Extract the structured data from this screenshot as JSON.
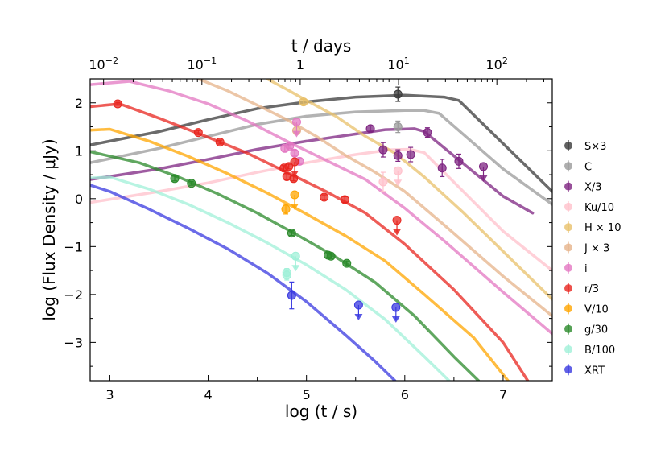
{
  "chart_data": {
    "type": "line",
    "xlabel": "log (t / s)",
    "ylabel": "log (Flux Density / μJy)",
    "top_xlabel": "t / days",
    "xlim": [
      2.8,
      7.5
    ],
    "ylim": [
      -3.8,
      2.5
    ],
    "x_ticks": [
      "3",
      "4",
      "5",
      "6",
      "7"
    ],
    "y_ticks": [
      "−3",
      "−2",
      "−1",
      "0",
      "1",
      "2"
    ],
    "top_ticks": [
      {
        "label": "10",
        "exp": "−2",
        "logt": 2.9365
      },
      {
        "label": "10",
        "exp": "−1",
        "logt": 3.9365
      },
      {
        "label": "10",
        "exp": "0",
        "logt": 4.9365,
        "plain": "1"
      },
      {
        "label": "10",
        "exp": "1",
        "logt": 5.9365
      },
      {
        "label": "10",
        "exp": "2",
        "logt": 6.9365
      }
    ],
    "series": [
      {
        "name": "S×3",
        "color": "#3a3a3a",
        "curve": [
          [
            2.8,
            1.12
          ],
          [
            3.5,
            1.4
          ],
          [
            4,
            1.65
          ],
          [
            4.5,
            1.88
          ],
          [
            5,
            2.02
          ],
          [
            5.5,
            2.12
          ],
          [
            6,
            2.16
          ],
          [
            6.4,
            2.12
          ],
          [
            6.55,
            2.05
          ],
          [
            7,
            1.15
          ],
          [
            7.5,
            0.15
          ]
        ],
        "points": [
          {
            "x": 5.93,
            "y": 2.18,
            "e": 0.15
          }
        ]
      },
      {
        "name": "C",
        "color": "#9a9a9a",
        "curve": [
          [
            2.8,
            0.75
          ],
          [
            3.5,
            1.05
          ],
          [
            4,
            1.3
          ],
          [
            4.5,
            1.55
          ],
          [
            5,
            1.72
          ],
          [
            5.5,
            1.81
          ],
          [
            6,
            1.84
          ],
          [
            6.2,
            1.84
          ],
          [
            6.35,
            1.78
          ],
          [
            7,
            0.62
          ],
          [
            7.5,
            -0.12
          ]
        ],
        "points": [
          {
            "x": 5.93,
            "y": 1.5,
            "e": 0.12
          }
        ]
      },
      {
        "name": "X/3",
        "color": "#7e2481",
        "curve": [
          [
            2.8,
            0.4
          ],
          [
            3.5,
            0.62
          ],
          [
            4,
            0.82
          ],
          [
            4.5,
            1.03
          ],
          [
            5,
            1.2
          ],
          [
            5.5,
            1.35
          ],
          [
            5.8,
            1.44
          ],
          [
            6.1,
            1.46
          ],
          [
            6.2,
            1.4
          ],
          [
            7,
            0.05
          ],
          [
            7.3,
            -0.3
          ]
        ],
        "points": [
          {
            "x": 5.65,
            "y": 1.46,
            "e": 0.06
          },
          {
            "x": 5.78,
            "y": 1.02,
            "e": 0.15
          },
          {
            "x": 5.93,
            "y": 0.9,
            "e": 0.12
          },
          {
            "x": 6.06,
            "y": 0.92,
            "e": 0.15
          },
          {
            "x": 6.23,
            "y": 1.38,
            "e": 0.1
          },
          {
            "x": 6.38,
            "y": 0.64,
            "e": 0.18
          },
          {
            "x": 6.55,
            "y": 0.78,
            "e": 0.15
          }
        ],
        "limits": [
          {
            "x": 6.8,
            "y": 0.67
          }
        ]
      },
      {
        "name": "Ku/10",
        "color": "#ffc0cb",
        "curve": [
          [
            2.8,
            -0.08
          ],
          [
            3.5,
            0.15
          ],
          [
            4,
            0.33
          ],
          [
            4.5,
            0.55
          ],
          [
            5,
            0.75
          ],
          [
            5.5,
            0.92
          ],
          [
            5.85,
            1.02
          ],
          [
            6.05,
            1.03
          ],
          [
            6.2,
            0.96
          ],
          [
            7,
            -0.68
          ],
          [
            7.5,
            -1.5
          ]
        ],
        "points": [
          {
            "x": 5.78,
            "y": 0.35,
            "e": 0.2
          }
        ],
        "limits": [
          {
            "x": 5.93,
            "y": 0.58
          }
        ]
      },
      {
        "name": "H × 10",
        "color": "#e8c06a",
        "curve": [
          [
            4.6,
            2.5
          ],
          [
            4.8,
            2.28
          ],
          [
            5,
            2.05
          ],
          [
            5.3,
            1.72
          ],
          [
            5.6,
            1.3
          ],
          [
            5.9,
            0.95
          ],
          [
            6.2,
            0.45
          ],
          [
            6.6,
            -0.3
          ],
          [
            7,
            -1.1
          ],
          [
            7.5,
            -2.1
          ]
        ],
        "points": [
          {
            "x": 4.97,
            "y": 2.02,
            "e": 0.05
          }
        ]
      },
      {
        "name": "J × 3",
        "color": "#e6b38a",
        "curve": [
          [
            3.9,
            2.5
          ],
          [
            4.2,
            2.25
          ],
          [
            4.5,
            1.95
          ],
          [
            4.8,
            1.65
          ],
          [
            5.1,
            1.3
          ],
          [
            5.4,
            0.9
          ],
          [
            5.7,
            0.55
          ],
          [
            6,
            0.15
          ],
          [
            6.4,
            -0.55
          ],
          [
            7,
            -1.62
          ],
          [
            7.5,
            -2.45
          ]
        ],
        "points": [
          {
            "x": 4.9,
            "y": 1.42,
            "e": 0.08
          }
        ]
      },
      {
        "name": "i",
        "color": "#e377c2",
        "curve": [
          [
            2.8,
            2.38
          ],
          [
            3.2,
            2.45
          ],
          [
            3.6,
            2.25
          ],
          [
            4,
            1.98
          ],
          [
            4.4,
            1.62
          ],
          [
            4.8,
            1.2
          ],
          [
            5.2,
            0.8
          ],
          [
            5.6,
            0.4
          ],
          [
            6,
            -0.2
          ],
          [
            6.4,
            -0.88
          ],
          [
            7,
            -1.95
          ],
          [
            7.5,
            -2.82
          ]
        ],
        "points": [
          {
            "x": 4.78,
            "y": 1.05,
            "e": 0.06
          },
          {
            "x": 4.83,
            "y": 1.1,
            "e": 0.05
          },
          {
            "x": 4.88,
            "y": 0.95,
            "e": 0.06
          },
          {
            "x": 4.93,
            "y": 0.78,
            "e": 0.06
          }
        ],
        "limits": [
          {
            "x": 4.9,
            "y": 1.6
          }
        ]
      },
      {
        "name": "r/3",
        "color": "#e8261f",
        "curve": [
          [
            2.8,
            1.92
          ],
          [
            3.1,
            1.98
          ],
          [
            3.5,
            1.68
          ],
          [
            4,
            1.28
          ],
          [
            4.4,
            0.95
          ],
          [
            4.8,
            0.55
          ],
          [
            5.2,
            0.15
          ],
          [
            5.6,
            -0.3
          ],
          [
            6,
            -0.95
          ],
          [
            6.5,
            -1.9
          ],
          [
            7,
            -3.0
          ],
          [
            7.25,
            -3.8
          ]
        ],
        "points": [
          {
            "x": 3.08,
            "y": 1.98,
            "e": 0.03
          },
          {
            "x": 3.9,
            "y": 1.38,
            "e": 0.04
          },
          {
            "x": 4.12,
            "y": 1.18,
            "e": 0.04
          },
          {
            "x": 4.77,
            "y": 0.64,
            "e": 0.05
          },
          {
            "x": 4.82,
            "y": 0.67,
            "e": 0.05
          },
          {
            "x": 4.8,
            "y": 0.46,
            "e": 0.06
          },
          {
            "x": 4.87,
            "y": 0.42,
            "e": 0.05
          },
          {
            "x": 5.18,
            "y": 0.03,
            "e": 0.05
          },
          {
            "x": 5.39,
            "y": -0.02,
            "e": 0.06
          }
        ],
        "limits": [
          {
            "x": 4.88,
            "y": 0.77
          },
          {
            "x": 5.92,
            "y": -0.45
          }
        ]
      },
      {
        "name": "V/10",
        "color": "#ffa500",
        "curve": [
          [
            2.8,
            1.43
          ],
          [
            3,
            1.45
          ],
          [
            3.4,
            1.2
          ],
          [
            3.8,
            0.88
          ],
          [
            4.2,
            0.52
          ],
          [
            4.6,
            0.12
          ],
          [
            5,
            -0.32
          ],
          [
            5.4,
            -0.78
          ],
          [
            5.8,
            -1.3
          ],
          [
            6.2,
            -2.0
          ],
          [
            6.7,
            -2.9
          ],
          [
            7.05,
            -3.8
          ]
        ],
        "points": [
          {
            "x": 4.79,
            "y": -0.22,
            "e": 0.1
          }
        ],
        "limits": [
          {
            "x": 4.88,
            "y": 0.08
          }
        ]
      },
      {
        "name": "g/30",
        "color": "#2b8a2b",
        "curve": [
          [
            2.8,
            0.98
          ],
          [
            3.3,
            0.75
          ],
          [
            3.7,
            0.45
          ],
          [
            4.1,
            0.1
          ],
          [
            4.5,
            -0.3
          ],
          [
            4.9,
            -0.75
          ],
          [
            5.3,
            -1.22
          ],
          [
            5.7,
            -1.75
          ],
          [
            6.1,
            -2.45
          ],
          [
            6.5,
            -3.3
          ],
          [
            6.75,
            -3.8
          ]
        ],
        "points": [
          {
            "x": 3.66,
            "y": 0.42,
            "e": 0.05
          },
          {
            "x": 3.83,
            "y": 0.32,
            "e": 0.04
          },
          {
            "x": 4.85,
            "y": -0.72,
            "e": 0.05
          },
          {
            "x": 5.22,
            "y": -1.18,
            "e": 0.05
          },
          {
            "x": 5.25,
            "y": -1.2,
            "e": 0.05
          },
          {
            "x": 5.41,
            "y": -1.35,
            "e": 0.05
          }
        ]
      },
      {
        "name": "B/100",
        "color": "#a0f0d8",
        "curve": [
          [
            2.8,
            0.43
          ],
          [
            3,
            0.45
          ],
          [
            3.4,
            0.2
          ],
          [
            3.8,
            -0.12
          ],
          [
            4.2,
            -0.5
          ],
          [
            4.6,
            -0.92
          ],
          [
            5,
            -1.38
          ],
          [
            5.4,
            -1.9
          ],
          [
            5.8,
            -2.52
          ],
          [
            6.2,
            -3.3
          ],
          [
            6.45,
            -3.8
          ]
        ],
        "points": [
          {
            "x": 4.8,
            "y": -1.6,
            "e": 0.1
          },
          {
            "x": 4.8,
            "y": -1.54,
            "e": 0.08
          }
        ],
        "limits": [
          {
            "x": 4.89,
            "y": -1.2
          }
        ]
      },
      {
        "name": "XRT",
        "color": "#3a3ae0",
        "curve": [
          [
            2.8,
            0.28
          ],
          [
            3,
            0.15
          ],
          [
            3.4,
            -0.22
          ],
          [
            3.8,
            -0.62
          ],
          [
            4.2,
            -1.05
          ],
          [
            4.6,
            -1.55
          ],
          [
            5,
            -2.15
          ],
          [
            5.4,
            -2.85
          ],
          [
            5.7,
            -3.4
          ],
          [
            5.9,
            -3.8
          ]
        ],
        "points": [
          {
            "x": 4.85,
            "y": -2.02,
            "e": 0.28
          }
        ],
        "limits": [
          {
            "x": 5.53,
            "y": -2.22
          },
          {
            "x": 5.91,
            "y": -2.27
          }
        ]
      }
    ]
  }
}
